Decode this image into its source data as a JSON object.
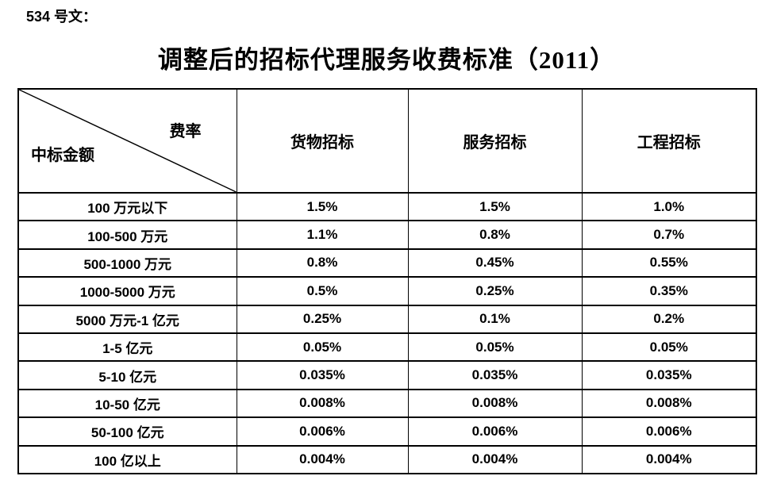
{
  "doc": {
    "label": "534 号文："
  },
  "title": {
    "text": "调整后的招标代理服务收费标准（2011）"
  },
  "table": {
    "corner": {
      "fee_label": "费率",
      "amount_label": "中标金额"
    },
    "columns": [
      "货物招标",
      "服务招标",
      "工程招标"
    ],
    "rows": [
      {
        "amount": "100 万元以下",
        "values": [
          "1.5%",
          "1.5%",
          "1.0%"
        ]
      },
      {
        "amount": "100-500 万元",
        "values": [
          "1.1%",
          "0.8%",
          "0.7%"
        ]
      },
      {
        "amount": "500-1000 万元",
        "values": [
          "0.8%",
          "0.45%",
          "0.55%"
        ]
      },
      {
        "amount": "1000-5000 万元",
        "values": [
          "0.5%",
          "0.25%",
          "0.35%"
        ]
      },
      {
        "amount": "5000 万元-1 亿元",
        "values": [
          "0.25%",
          "0.1%",
          "0.2%"
        ]
      },
      {
        "amount": "1-5 亿元",
        "values": [
          "0.05%",
          "0.05%",
          "0.05%"
        ]
      },
      {
        "amount": "5-10 亿元",
        "values": [
          "0.035%",
          "0.035%",
          "0.035%"
        ]
      },
      {
        "amount": "10-50 亿元",
        "values": [
          "0.008%",
          "0.008%",
          "0.008%"
        ]
      },
      {
        "amount": "50-100 亿元",
        "values": [
          "0.006%",
          "0.006%",
          "0.006%"
        ]
      },
      {
        "amount": "100 亿以上",
        "values": [
          "0.004%",
          "0.004%",
          "0.004%"
        ]
      }
    ]
  },
  "colors": {
    "text": "#000000",
    "border": "#000000",
    "background": "#ffffff"
  }
}
